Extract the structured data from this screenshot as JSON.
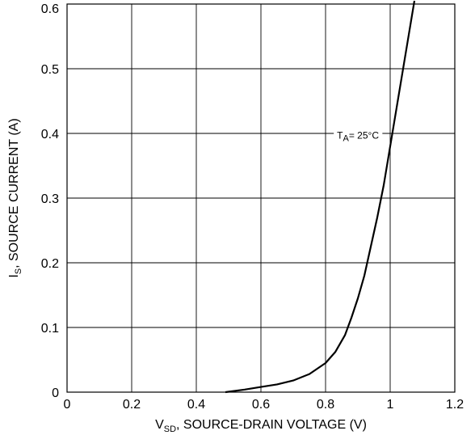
{
  "chart_data": {
    "type": "line",
    "title": "",
    "xlabel": {
      "main": "V",
      "sub": "SD",
      "rest": ", SOURCE-DRAIN VOLTAGE (V)"
    },
    "ylabel": {
      "main": "I",
      "sub": "S",
      "rest": ", SOURCE CURRENT (A)"
    },
    "xlim": [
      0,
      1.2
    ],
    "ylim": [
      0,
      0.6
    ],
    "x_ticks": [
      0,
      0.2,
      0.4,
      0.6,
      0.8,
      1.0,
      1.2
    ],
    "x_tick_labels": [
      "0",
      "0.2",
      "0.4",
      "0.6",
      "0.8",
      "1",
      "1.2"
    ],
    "y_ticks": [
      0,
      0.1,
      0.2,
      0.3,
      0.4,
      0.5,
      0.6
    ],
    "y_tick_labels": [
      "0",
      "0.1",
      "0.2",
      "0.3",
      "0.4",
      "0.5",
      "0.6"
    ],
    "grid": true,
    "annotation": {
      "main": "T",
      "sub": "A",
      "rest": "= 25°C",
      "x": 0.985,
      "y": 0.397
    },
    "series": [
      {
        "x": [
          0.49,
          0.55,
          0.6,
          0.65,
          0.7,
          0.75,
          0.8,
          0.83,
          0.86,
          0.88,
          0.9,
          0.92,
          0.94,
          0.96,
          0.98,
          1.0,
          1.02,
          1.04,
          1.06,
          1.075
        ],
        "y": [
          0.0,
          0.004,
          0.008,
          0.012,
          0.018,
          0.028,
          0.045,
          0.062,
          0.088,
          0.115,
          0.145,
          0.18,
          0.225,
          0.27,
          0.32,
          0.38,
          0.44,
          0.5,
          0.56,
          0.605
        ]
      }
    ]
  }
}
